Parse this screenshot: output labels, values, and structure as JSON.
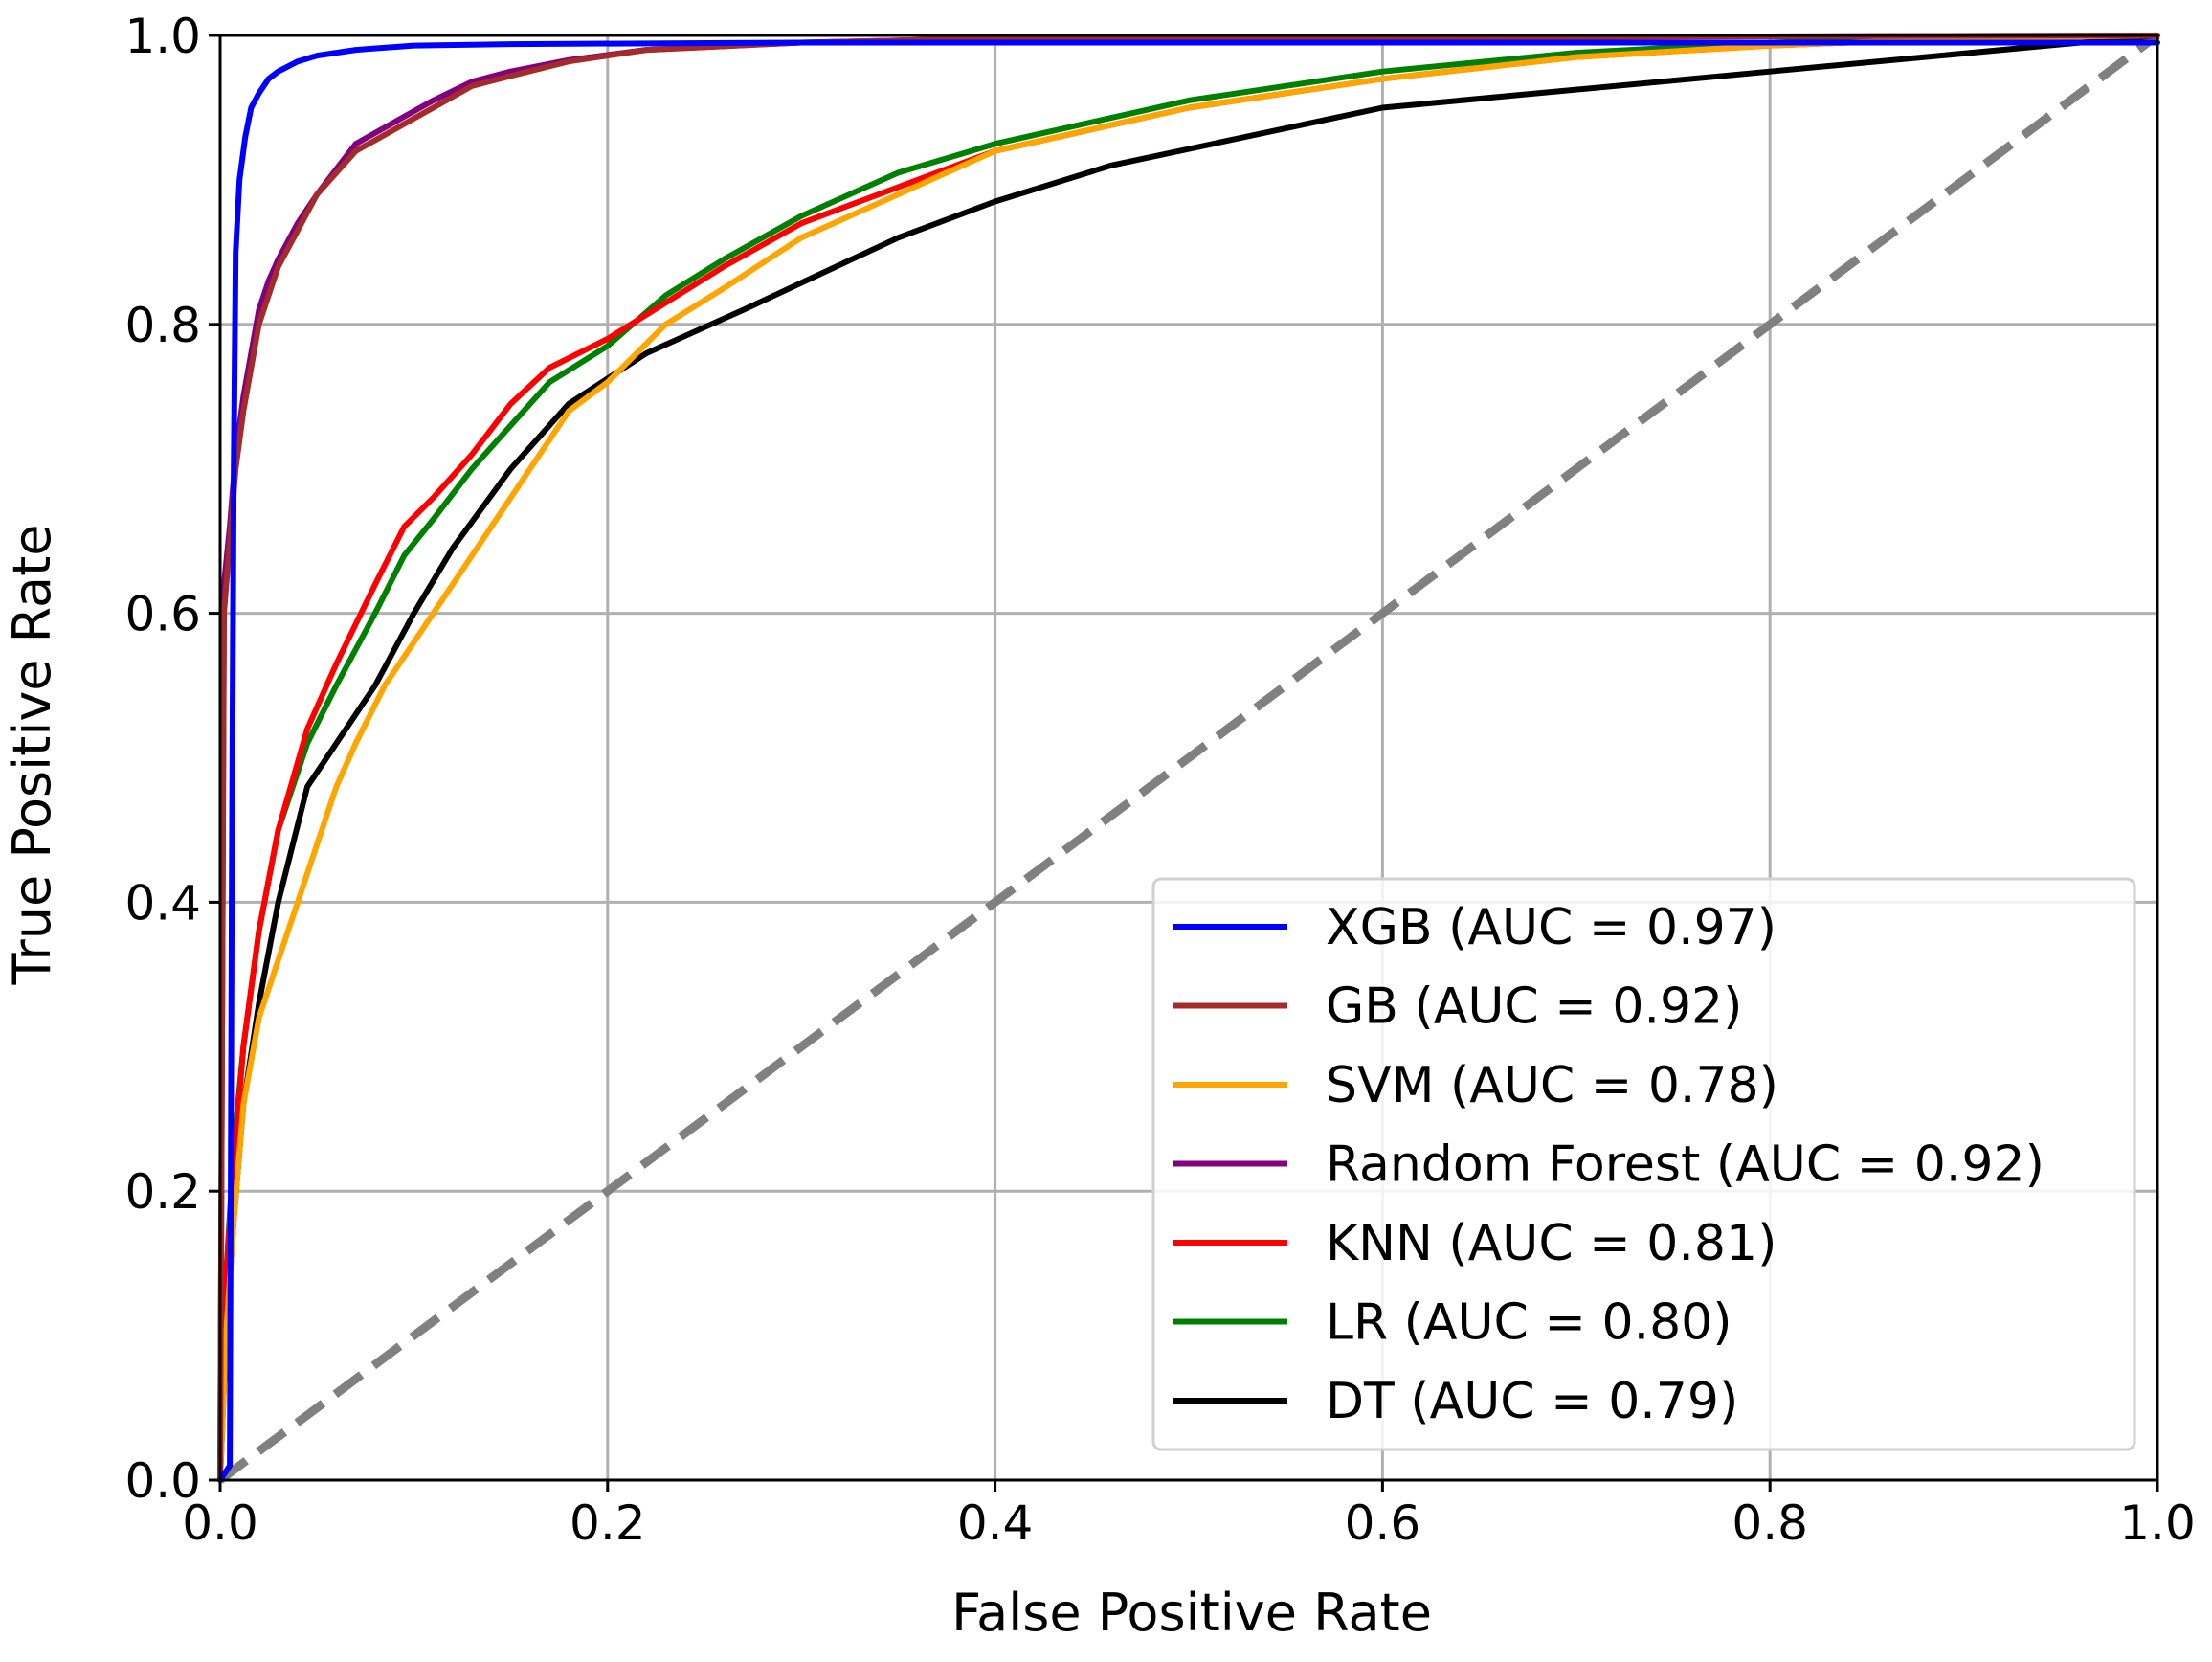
{
  "chart_data": {
    "type": "line",
    "title": "",
    "xlabel": "False Positive Rate",
    "ylabel": "True Positive Rate",
    "xlim": [
      0.0,
      1.0
    ],
    "ylim": [
      0.0,
      1.0
    ],
    "xticks": [
      "0.0",
      "0.2",
      "0.4",
      "0.6",
      "0.8",
      "1.0"
    ],
    "yticks": [
      "0.0",
      "0.2",
      "0.4",
      "0.6",
      "0.8",
      "1.0"
    ],
    "grid": true,
    "legend_position": "lower-right",
    "diagonal": {
      "name": "chance",
      "color": "#808080",
      "style": "dashed",
      "x": [
        0,
        1
      ],
      "y": [
        0,
        1
      ]
    },
    "series": [
      {
        "name": "XGB",
        "label": "XGB (AUC = 0.97)",
        "auc": 0.97,
        "color": "#0000ff",
        "x": [
          0,
          0.005,
          0.006,
          0.007,
          0.008,
          0.01,
          0.013,
          0.016,
          0.02,
          0.025,
          0.03,
          0.04,
          0.05,
          0.07,
          0.1,
          0.15,
          0.3,
          0.6,
          1.0
        ],
        "y": [
          0,
          0.01,
          0.4,
          0.7,
          0.85,
          0.9,
          0.93,
          0.95,
          0.96,
          0.97,
          0.975,
          0.982,
          0.986,
          0.99,
          0.993,
          0.994,
          0.995,
          0.995,
          0.995
        ]
      },
      {
        "name": "GB",
        "label": "GB (AUC = 0.92)",
        "auc": 0.92,
        "color": "#a52a2a",
        "x": [
          0,
          0.002,
          0.005,
          0.008,
          0.012,
          0.016,
          0.02,
          0.025,
          0.03,
          0.04,
          0.05,
          0.07,
          0.09,
          0.11,
          0.13,
          0.15,
          0.18,
          0.22,
          0.3,
          0.4,
          1.0
        ],
        "y": [
          0,
          0.6,
          0.65,
          0.7,
          0.74,
          0.77,
          0.8,
          0.82,
          0.84,
          0.865,
          0.89,
          0.92,
          0.935,
          0.95,
          0.965,
          0.972,
          0.982,
          0.99,
          0.995,
          0.998,
          1.0
        ]
      },
      {
        "name": "SVM",
        "label": "SVM (AUC = 0.78)",
        "auc": 0.78,
        "color": "#ffa500",
        "x": [
          0,
          0.003,
          0.007,
          0.012,
          0.02,
          0.03,
          0.04,
          0.05,
          0.06,
          0.07,
          0.085,
          0.1,
          0.12,
          0.14,
          0.16,
          0.18,
          0.2,
          0.23,
          0.26,
          0.3,
          0.35,
          0.4,
          0.5,
          0.6,
          0.7,
          0.8,
          0.9,
          1.0
        ],
        "y": [
          0,
          0.1,
          0.18,
          0.26,
          0.32,
          0.36,
          0.4,
          0.44,
          0.48,
          0.51,
          0.55,
          0.58,
          0.62,
          0.66,
          0.7,
          0.74,
          0.76,
          0.8,
          0.825,
          0.86,
          0.89,
          0.92,
          0.95,
          0.97,
          0.985,
          0.993,
          0.998,
          1.0
        ]
      },
      {
        "name": "Random Forest",
        "label": "Random Forest (AUC = 0.92)",
        "auc": 0.92,
        "color": "#800080",
        "x": [
          0,
          0.002,
          0.005,
          0.008,
          0.012,
          0.016,
          0.02,
          0.025,
          0.03,
          0.04,
          0.05,
          0.07,
          0.09,
          0.11,
          0.13,
          0.15,
          0.18,
          0.22,
          0.3,
          0.4,
          1.0
        ],
        "y": [
          0,
          0.62,
          0.66,
          0.71,
          0.75,
          0.78,
          0.81,
          0.83,
          0.845,
          0.87,
          0.89,
          0.925,
          0.94,
          0.955,
          0.968,
          0.975,
          0.983,
          0.99,
          0.995,
          0.998,
          1.0
        ]
      },
      {
        "name": "KNN",
        "label": "KNN (AUC = 0.81)",
        "auc": 0.81,
        "color": "#ff0000",
        "x": [
          0,
          0.003,
          0.007,
          0.012,
          0.02,
          0.03,
          0.045,
          0.06,
          0.08,
          0.095,
          0.11,
          0.13,
          0.15,
          0.17,
          0.2,
          0.23,
          0.26,
          0.3,
          0.35,
          0.4,
          0.5,
          0.6,
          0.7,
          0.8,
          0.9,
          1.0
        ],
        "y": [
          0,
          0.14,
          0.22,
          0.3,
          0.38,
          0.45,
          0.52,
          0.565,
          0.62,
          0.66,
          0.68,
          0.71,
          0.745,
          0.77,
          0.79,
          0.815,
          0.84,
          0.87,
          0.895,
          0.92,
          0.95,
          0.97,
          0.985,
          0.993,
          0.998,
          1.0
        ]
      },
      {
        "name": "LR",
        "label": "LR (AUC = 0.80)",
        "auc": 0.8,
        "color": "#008000",
        "x": [
          0,
          0.003,
          0.007,
          0.012,
          0.02,
          0.03,
          0.045,
          0.06,
          0.08,
          0.095,
          0.11,
          0.13,
          0.15,
          0.17,
          0.2,
          0.23,
          0.26,
          0.3,
          0.35,
          0.4,
          0.5,
          0.6,
          0.7,
          0.8,
          0.9,
          1.0
        ],
        "y": [
          0,
          0.14,
          0.23,
          0.3,
          0.38,
          0.45,
          0.51,
          0.55,
          0.6,
          0.64,
          0.665,
          0.7,
          0.73,
          0.76,
          0.785,
          0.82,
          0.845,
          0.875,
          0.905,
          0.925,
          0.955,
          0.975,
          0.988,
          0.995,
          0.999,
          1.0
        ]
      },
      {
        "name": "DT",
        "label": "DT (AUC = 0.79)",
        "auc": 0.79,
        "color": "#000000",
        "x": [
          0,
          0.003,
          0.007,
          0.012,
          0.02,
          0.03,
          0.045,
          0.06,
          0.08,
          0.1,
          0.12,
          0.15,
          0.18,
          0.22,
          0.27,
          0.35,
          0.4,
          0.46,
          0.6,
          0.8,
          1.0
        ],
        "y": [
          0,
          0.1,
          0.18,
          0.26,
          0.33,
          0.4,
          0.48,
          0.51,
          0.55,
          0.6,
          0.645,
          0.7,
          0.745,
          0.78,
          0.81,
          0.86,
          0.885,
          0.91,
          0.95,
          0.975,
          1.0
        ]
      }
    ]
  }
}
